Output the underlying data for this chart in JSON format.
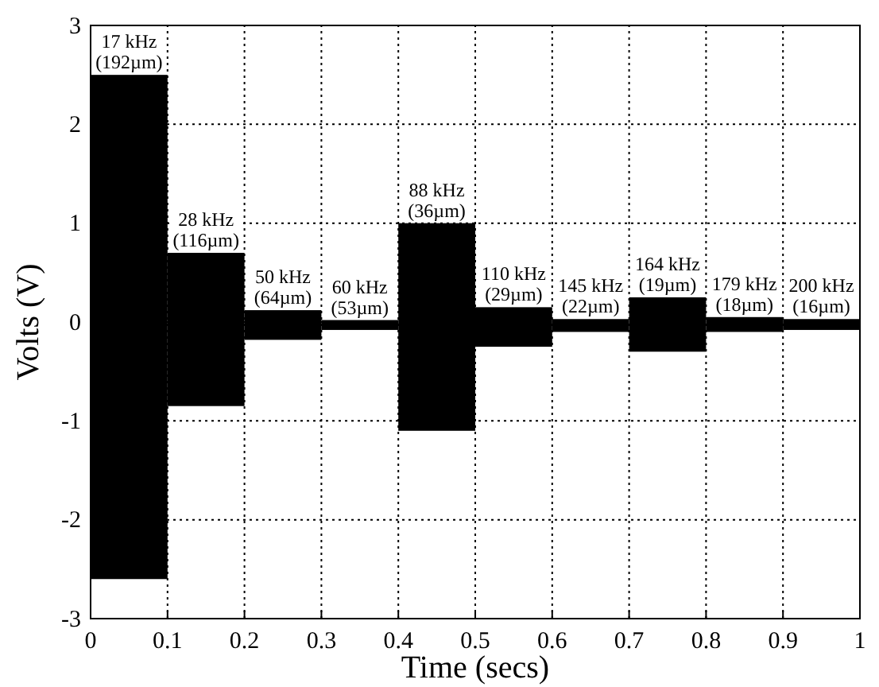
{
  "chart_data": {
    "type": "bar",
    "xlabel": "Time (secs)",
    "ylabel": "Volts (V)",
    "x": [
      0.05,
      0.15,
      0.25,
      0.35,
      0.45,
      0.55,
      0.65,
      0.75,
      0.85,
      0.95
    ],
    "base": [
      -2.6,
      -0.85,
      -0.18,
      -0.08,
      -1.1,
      -0.25,
      -0.1,
      -0.3,
      -0.1,
      -0.08
    ],
    "values": [
      5.1,
      1.55,
      0.3,
      0.1,
      2.1,
      0.4,
      0.13,
      0.55,
      0.15,
      0.11
    ],
    "color": "#000000",
    "xlim": [
      0,
      1
    ],
    "xticks": [
      0,
      0.1,
      0.2,
      0.3,
      0.4,
      0.5,
      0.6,
      0.7,
      0.8,
      0.9,
      1
    ],
    "ylim": [
      -3,
      3
    ],
    "yticks": [
      -3,
      -2,
      -1,
      0,
      1,
      2,
      3
    ],
    "grid": true,
    "line_style": "dotted",
    "annotations": [
      {
        "text": "17 kHz\n(192µm)",
        "x": 0.05,
        "y": 2.5
      },
      {
        "text": "28 kHz\n(116µm)",
        "x": 0.15,
        "y": 0.7
      },
      {
        "text": "50 kHz\n(64µm)",
        "x": 0.25,
        "y": 0.12
      },
      {
        "text": "60 kHz\n(53µm)",
        "x": 0.35,
        "y": 0.02
      },
      {
        "text": "88 kHz\n(36µm)",
        "x": 0.45,
        "y": 1.0
      },
      {
        "text": "110 kHz\n(29µm)",
        "x": 0.55,
        "y": 0.15
      },
      {
        "text": "145 kHz\n(22µm)",
        "x": 0.65,
        "y": 0.03
      },
      {
        "text": "164 kHz\n(19µm)",
        "x": 0.75,
        "y": 0.25
      },
      {
        "text": "179 kHz\n(18µm)",
        "x": 0.85,
        "y": 0.05
      },
      {
        "text": "200 kHz\n(16µm)",
        "x": 0.95,
        "y": 0.03
      }
    ]
  }
}
